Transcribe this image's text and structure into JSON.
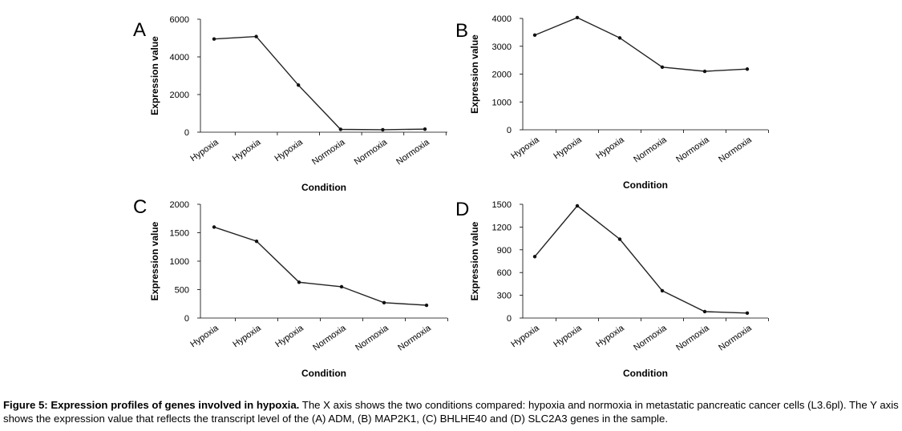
{
  "caption": {
    "bold": "Figure 5: Expression profiles of genes involved in hypoxia.",
    "text": " The X axis shows the two conditions compared: hypoxia and normoxia in metastatic pancreatic cancer cells (L3.6pl). The Y axis shows the expression value that reflects the transcript level of the (A) ADM, (B) MAP2K1, (C) BHLHE40 and (D) SLC2A3 genes in the sample."
  },
  "chart_data": [
    {
      "panel": "A",
      "type": "line",
      "categories": [
        "Hypoxia",
        "Hypoxia",
        "Hypoxia",
        "Normoxia",
        "Normoxia",
        "Normoxia"
      ],
      "values": [
        4950,
        5080,
        2500,
        150,
        130,
        160
      ],
      "xlabel": "Condition",
      "ylabel": "Expression value",
      "ylim": [
        0,
        6000
      ],
      "yticks": [
        0,
        2000,
        4000,
        6000
      ],
      "grid": false,
      "legend": "none"
    },
    {
      "panel": "B",
      "type": "line",
      "categories": [
        "Hypoxia",
        "Hypoxia",
        "Hypoxia",
        "Normoxia",
        "Normoxia",
        "Normoxia"
      ],
      "values": [
        3400,
        4030,
        3300,
        2250,
        2100,
        2180
      ],
      "xlabel": "Condition",
      "ylabel": "Expression value",
      "ylim": [
        0,
        4000
      ],
      "yticks": [
        0,
        1000,
        2000,
        3000,
        4000
      ],
      "grid": false,
      "legend": "none"
    },
    {
      "panel": "C",
      "type": "line",
      "categories": [
        "Hypoxia",
        "Hypoxia",
        "Hypoxia",
        "Normoxia",
        "Normoxia",
        "Normoxia"
      ],
      "values": [
        1600,
        1350,
        630,
        550,
        270,
        225
      ],
      "xlabel": "Condition",
      "ylabel": "Expression value",
      "ylim": [
        0,
        2000
      ],
      "yticks": [
        0,
        500,
        1000,
        1500,
        2000
      ],
      "grid": false,
      "legend": "none"
    },
    {
      "panel": "D",
      "type": "line",
      "categories": [
        "Hypoxia",
        "Hypoxia",
        "Hypoxia",
        "Normoxia",
        "Normoxia",
        "Normoxia"
      ],
      "values": [
        810,
        1480,
        1040,
        360,
        85,
        65
      ],
      "xlabel": "Condition",
      "ylabel": "Expression value",
      "ylim": [
        0,
        1500
      ],
      "yticks": [
        0,
        300,
        600,
        900,
        1200,
        1500
      ],
      "grid": false,
      "legend": "none"
    }
  ]
}
